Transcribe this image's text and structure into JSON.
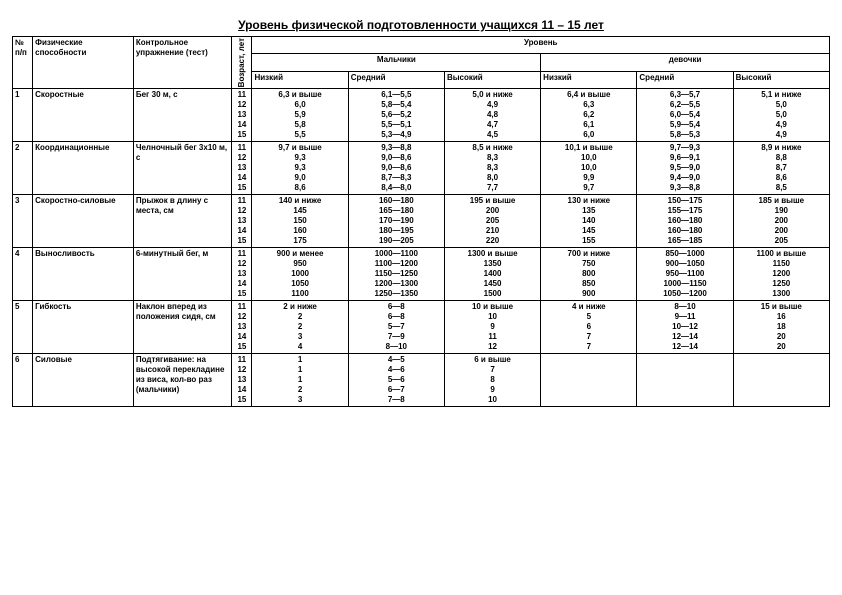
{
  "title": "Уровень физической подготовленности учащихся 11 – 15 лет",
  "headers": {
    "num": "№ п/п",
    "ability": "Физические способности",
    "test": "Контрольное упражнение (тест)",
    "age": "Возраст, лет",
    "level": "Уровень",
    "boys": "Мальчики",
    "girls": "девочки",
    "low": "Низкий",
    "mid": "Средний",
    "high": "Высокий"
  },
  "rows": [
    {
      "n": "1",
      "ability": "Скоростные",
      "test": "Бег 30 м, с",
      "ages": [
        "11",
        "12",
        "13",
        "14",
        "15"
      ],
      "b_low": [
        "6,3 и выше",
        "6,0",
        "5,9",
        "5,8",
        "5,5"
      ],
      "b_mid": [
        "6,1—5,5",
        "5,8—5,4",
        "5,6—5,2",
        "5,5—5,1",
        "5,3—4,9"
      ],
      "b_high": [
        "5,0 и ниже",
        "4,9",
        "4,8",
        "4,7",
        "4,5"
      ],
      "g_low": [
        "6,4 и выше",
        "6,3",
        "6,2",
        "6,1",
        "6,0"
      ],
      "g_mid": [
        "6,3—5,7",
        "6,2—5,5",
        "6,0—5,4",
        "5,9—5,4",
        "5,8—5,3"
      ],
      "g_high": [
        "5,1 и ниже",
        "5,0",
        "5,0",
        "4,9",
        "4,9"
      ]
    },
    {
      "n": "2",
      "ability": "Координационные",
      "test": "Челночный бег 3x10 м, с",
      "ages": [
        "11",
        "12",
        "13",
        "14",
        "15"
      ],
      "b_low": [
        "9,7 и выше",
        "9,3",
        "9,3",
        "9,0",
        "8,6"
      ],
      "b_mid": [
        "9,3—8,8",
        "9,0—8,6",
        "9,0—8,6",
        "8,7—8,3",
        "8,4—8,0"
      ],
      "b_high": [
        "8,5 и ниже",
        "8,3",
        "8,3",
        "8,0",
        "7,7"
      ],
      "g_low": [
        "10,1 и выше",
        "10,0",
        "10,0",
        "9,9",
        "9,7"
      ],
      "g_mid": [
        "9,7—9,3",
        "9,6—9,1",
        "9,5—9,0",
        "9,4—9,0",
        "9,3—8,8"
      ],
      "g_high": [
        "8,9 и ниже",
        "8,8",
        "8,7",
        "8,6",
        "8,5"
      ]
    },
    {
      "n": "3",
      "ability": "Скоростно-силовые",
      "test": "Прыжок в длину с места, см",
      "ages": [
        "11",
        "12",
        "13",
        "14",
        "15"
      ],
      "b_low": [
        "140 и ниже",
        "145",
        "150",
        "160",
        "175"
      ],
      "b_mid": [
        "160—180",
        "165—180",
        "170—190",
        "180—195",
        "190—205"
      ],
      "b_high": [
        "195 и выше",
        "200",
        "205",
        "210",
        "220"
      ],
      "g_low": [
        "130 и ниже",
        "135",
        "140",
        "145",
        "155"
      ],
      "g_mid": [
        "150—175",
        "155—175",
        "160—180",
        "160—180",
        "165—185"
      ],
      "g_high": [
        "185 и выше",
        "190",
        "200",
        "200",
        "205"
      ]
    },
    {
      "n": "4",
      "ability": "Выносливость",
      "test": "6-минутный бег, м",
      "ages": [
        "11",
        "12",
        "13",
        "14",
        "15"
      ],
      "b_low": [
        "900 и менее",
        "950",
        "1000",
        "1050",
        "1100"
      ],
      "b_mid": [
        "1000—1100",
        "1100—1200",
        "1150—1250",
        "1200—1300",
        "1250—1350"
      ],
      "b_high": [
        "1300 и выше",
        "1350",
        "1400",
        "1450",
        "1500"
      ],
      "g_low": [
        "700 и ниже",
        "750",
        "800",
        "850",
        "900"
      ],
      "g_mid": [
        "850—1000",
        "900—1050",
        "950—1100",
        "1000—1150",
        "1050—1200"
      ],
      "g_high": [
        "1100 и выше",
        "1150",
        "1200",
        "1250",
        "1300"
      ]
    },
    {
      "n": "5",
      "ability": "Гибкость",
      "test": "Наклон вперед из положения сидя, см",
      "ages": [
        "11",
        "12",
        "13",
        "14",
        "15"
      ],
      "b_low": [
        "2 и ниже",
        "2",
        "2",
        "3",
        "4"
      ],
      "b_mid": [
        "6—8",
        "6—8",
        "5—7",
        "7—9",
        "8—10"
      ],
      "b_high": [
        "10 и выше",
        "10",
        "9",
        "11",
        "12"
      ],
      "g_low": [
        "4 и ниже",
        "5",
        "6",
        "7",
        "7"
      ],
      "g_mid": [
        "8—10",
        "9—11",
        "10—12",
        "12—14",
        "12—14"
      ],
      "g_high": [
        "15 и выше",
        "16",
        "18",
        "20",
        "20"
      ]
    },
    {
      "n": "6",
      "ability": "Силовые",
      "test": "Подтягивание: на высокой перекладине из виса, кол-во раз (мальчики)",
      "ages": [
        "11",
        "12",
        "13",
        "14",
        "15"
      ],
      "b_low": [
        "1",
        "1",
        "1",
        "2",
        "3"
      ],
      "b_mid": [
        "4—5",
        "4—6",
        "5—6",
        "6—7",
        "7—8"
      ],
      "b_high": [
        "6 и выше",
        "7",
        "8",
        "9",
        "10"
      ],
      "g_low": [
        "",
        "",
        "",
        "",
        ""
      ],
      "g_mid": [
        "",
        "",
        "",
        "",
        ""
      ],
      "g_high": [
        "",
        "",
        "",
        "",
        ""
      ]
    }
  ]
}
